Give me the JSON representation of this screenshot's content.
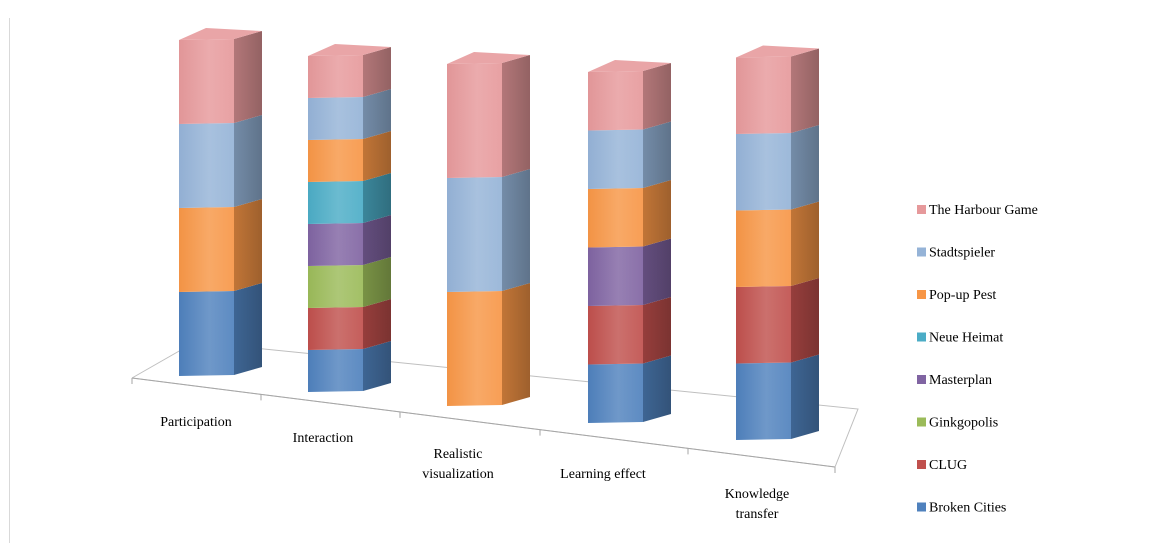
{
  "chart_data": {
    "type": "bar",
    "subtype": "stacked-3d-column",
    "title": "",
    "xlabel": "",
    "ylabel": "",
    "grid": false,
    "legend_position": "right",
    "categories": [
      "Participation",
      "Interaction",
      "Realistic visualization",
      "Learning effect",
      "Knowledge transfer"
    ],
    "category_labels": [
      [
        "Participation"
      ],
      [
        "Interaction"
      ],
      [
        "Realistic",
        "visualization"
      ],
      [
        "Learning effect"
      ],
      [
        "Knowledge",
        "transfer"
      ]
    ],
    "series": [
      {
        "name": "Broken Cities",
        "color": "#4f81bd",
        "values": [
          1,
          1,
          0,
          1,
          1
        ]
      },
      {
        "name": "CLUG",
        "color": "#c0504d",
        "values": [
          0,
          1,
          0,
          1,
          1
        ]
      },
      {
        "name": "Ginkgopolis",
        "color": "#9bbb59",
        "values": [
          0,
          1,
          0,
          0,
          0
        ]
      },
      {
        "name": "Masterplan",
        "color": "#8064a2",
        "values": [
          0,
          1,
          0,
          1,
          0
        ]
      },
      {
        "name": "Neue Heimat",
        "color": "#4bacc6",
        "values": [
          0,
          1,
          0,
          0,
          0
        ]
      },
      {
        "name": "Pop-up Pest",
        "color": "#f79646",
        "values": [
          1,
          1,
          1,
          1,
          1
        ]
      },
      {
        "name": "Stadtspieler",
        "color": "#95b3d7",
        "values": [
          1,
          1,
          1,
          1,
          1
        ]
      },
      {
        "name": "The Harbour Game",
        "color": "#e6999b",
        "values": [
          1,
          1,
          1,
          1,
          1
        ]
      }
    ]
  }
}
